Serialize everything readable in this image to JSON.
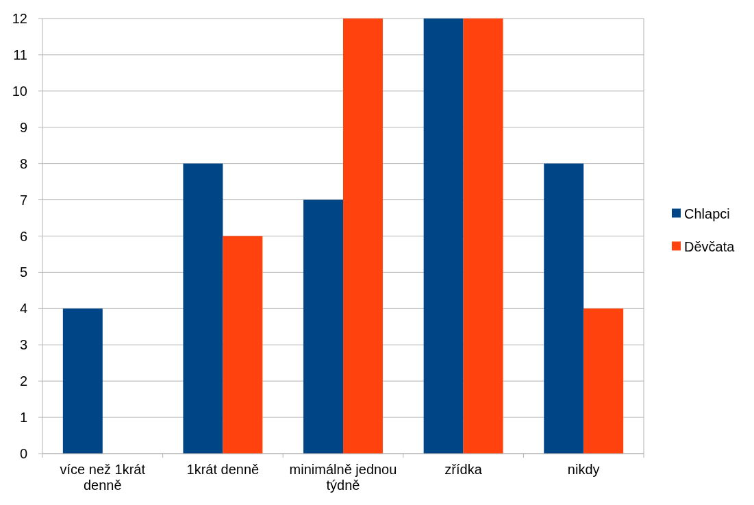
{
  "chart_data": {
    "type": "bar",
    "categories": [
      "více než 1krát denně",
      "1krát denně",
      "minimálně jednou týdně",
      "zřídka",
      "nikdy"
    ],
    "series": [
      {
        "name": "Chlapci",
        "color": "#004586",
        "values": [
          4,
          8,
          7,
          12,
          8
        ]
      },
      {
        "name": "Děvčata",
        "color": "#ff420e",
        "values": [
          0,
          6,
          12,
          12,
          4
        ]
      }
    ],
    "ylim": [
      0,
      12
    ],
    "yticks": [
      0,
      1,
      2,
      3,
      4,
      5,
      6,
      7,
      8,
      9,
      10,
      11,
      12
    ],
    "grid": "y",
    "legend": "right"
  }
}
